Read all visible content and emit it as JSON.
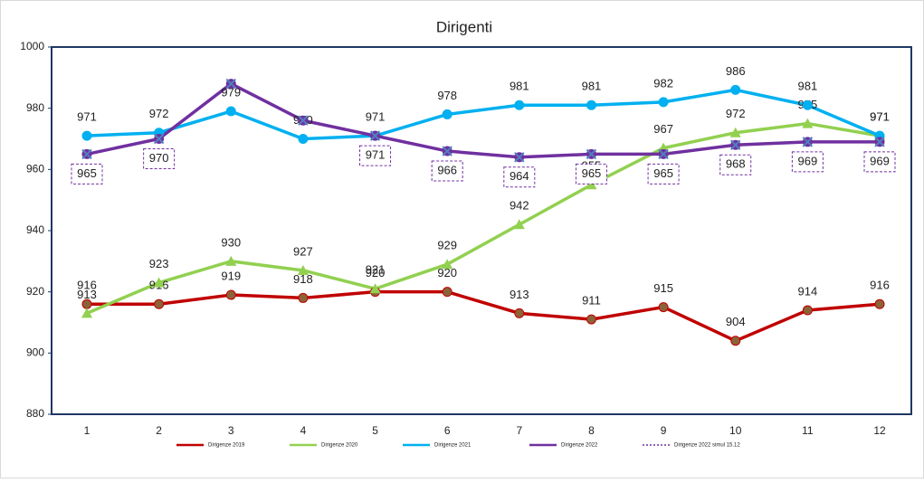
{
  "chart_data": {
    "type": "line",
    "title": "Dirigenti",
    "categories": [
      1,
      2,
      3,
      4,
      5,
      6,
      7,
      8,
      9,
      10,
      11,
      12
    ],
    "ylim": [
      880,
      1000
    ],
    "yticks": [
      880,
      900,
      920,
      940,
      960,
      980,
      1000
    ],
    "series": [
      {
        "name": "Dirigenze 2019",
        "color": "#c00000",
        "marker": "circle",
        "values": [
          916,
          916,
          919,
          918,
          920,
          920,
          913,
          911,
          915,
          904,
          914,
          916
        ]
      },
      {
        "name": "Dirigenze 2020",
        "color": "#92d050",
        "marker": "triangle",
        "values": [
          913,
          923,
          930,
          927,
          921,
          929,
          942,
          955,
          967,
          972,
          975,
          971
        ]
      },
      {
        "name": "Dirigenze 2021",
        "color": "#00b0f0",
        "marker": "circle",
        "values": [
          971,
          972,
          979,
          970,
          971,
          978,
          981,
          981,
          982,
          986,
          981,
          971
        ]
      },
      {
        "name": "Dirigenze 2022",
        "color": "#7030a0",
        "marker": "circle",
        "values": [
          965,
          970,
          988,
          976,
          971,
          966,
          964,
          965,
          965,
          968,
          969,
          969
        ]
      },
      {
        "name": "Dirigenze 2022 simul 15.12",
        "color": "#7030a0",
        "marker": "x",
        "dashed": true,
        "values": [
          965,
          970,
          988,
          976,
          971,
          966,
          964,
          965,
          965,
          968,
          969,
          969
        ],
        "value_labels": [
          "965",
          "970",
          null,
          null,
          "971",
          "966",
          "964",
          "965",
          "965",
          "968",
          "969",
          "969"
        ]
      }
    ]
  }
}
